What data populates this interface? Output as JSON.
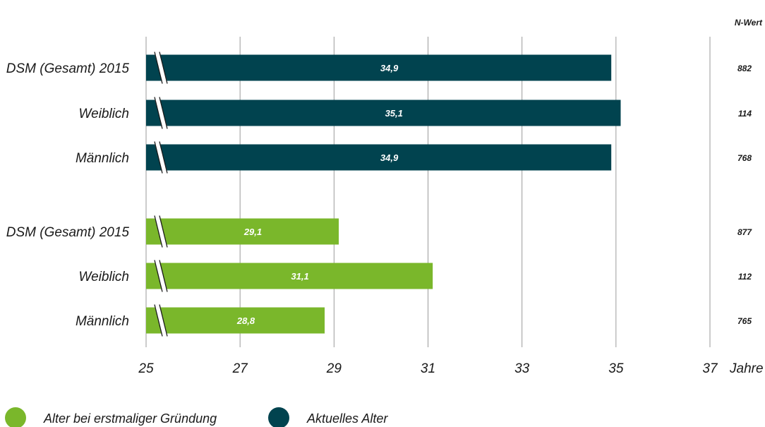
{
  "chart_data": {
    "type": "bar",
    "orientation": "horizontal",
    "xlabel": "Jahre",
    "xlim": [
      25,
      37
    ],
    "xticks": [
      25,
      27,
      29,
      31,
      33,
      35,
      37
    ],
    "axis_break": true,
    "grid": true,
    "n_header": "N-Wert",
    "groups": [
      {
        "series": "Aktuelles Alter",
        "color": "#01434f",
        "bars": [
          {
            "category": "DSM (Gesamt) 2015",
            "value": 34.9,
            "value_label": "34,9",
            "n": "882"
          },
          {
            "category": "Weiblich",
            "value": 35.1,
            "value_label": "35,1",
            "n": "114"
          },
          {
            "category": "Männlich",
            "value": 34.9,
            "value_label": "34,9",
            "n": "768"
          }
        ]
      },
      {
        "series": "Alter bei erstmaliger Gründung",
        "color": "#7ab72b",
        "bars": [
          {
            "category": "DSM (Gesamt) 2015",
            "value": 29.1,
            "value_label": "29,1",
            "n": "877"
          },
          {
            "category": "Weiblich",
            "value": 31.1,
            "value_label": "31,1",
            "n": "112"
          },
          {
            "category": "Männlich",
            "value": 28.8,
            "value_label": "28,8",
            "n": "765"
          }
        ]
      }
    ],
    "legend": {
      "position": "bottom-left",
      "items": [
        {
          "label": "Alter bei erstmaliger Gründung",
          "color": "#7ab72b"
        },
        {
          "label": "Aktuelles Alter",
          "color": "#01434f"
        }
      ]
    }
  }
}
